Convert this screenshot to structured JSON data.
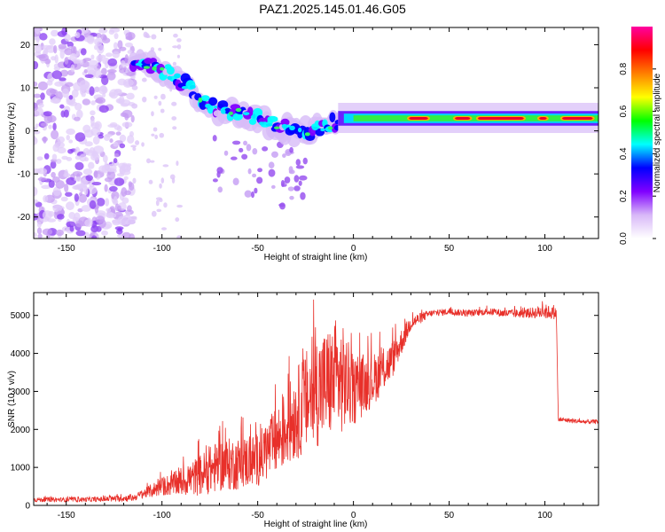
{
  "figure": {
    "title": "PAZ1.2025.145.01.46.G05"
  },
  "chart_data": [
    {
      "type": "heatmap",
      "xlabel": "Height of straight line (km)",
      "ylabel": "Frequency (Hz)",
      "xlim": [
        -167,
        128
      ],
      "ylim": [
        -25,
        24
      ],
      "xticks": [
        -150,
        -100,
        -50,
        0,
        50,
        100
      ],
      "yticks": [
        -20,
        -10,
        0,
        10,
        20
      ],
      "colorbar": {
        "label": "Normalized spectral amplitude",
        "range": [
          0,
          1
        ],
        "ticks": [
          0.0,
          0.2,
          0.4,
          0.6,
          0.8
        ],
        "tick_labels": [
          "0.0",
          "0.2",
          "0.4",
          "0.6",
          "0.8"
        ],
        "colormap": [
          "#ffffff",
          "#d8b8f8",
          "#8000ff",
          "#0000ff",
          "#00ffff",
          "#00ff00",
          "#ffff00",
          "#ff8000",
          "#ff0000",
          "#ff00a0"
        ],
        "position": "right"
      },
      "ridge": [
        {
          "x": -115,
          "y": 16
        },
        {
          "x": -105,
          "y": 15
        },
        {
          "x": -95,
          "y": 13
        },
        {
          "x": -85,
          "y": 10
        },
        {
          "x": -80,
          "y": 7
        },
        {
          "x": -70,
          "y": 5
        },
        {
          "x": -60,
          "y": 4
        },
        {
          "x": -50,
          "y": 3
        },
        {
          "x": -40,
          "y": 1
        },
        {
          "x": -30,
          "y": 0
        },
        {
          "x": -20,
          "y": 0
        },
        {
          "x": -10,
          "y": 2
        },
        {
          "x": 0,
          "y": 3
        },
        {
          "x": 25,
          "y": 2.8
        },
        {
          "x": 50,
          "y": 3
        },
        {
          "x": 75,
          "y": 3
        },
        {
          "x": 100,
          "y": 3
        },
        {
          "x": 128,
          "y": 2.8
        }
      ],
      "noise_region": [
        -167,
        -115
      ]
    },
    {
      "type": "line",
      "xlabel": "Height of straight line (km)",
      "ylabel": "SNR (10 * v/v)",
      "xlim": [
        -167,
        128
      ],
      "ylim": [
        0,
        5600
      ],
      "xticks": [
        -150,
        -100,
        -50,
        0,
        50,
        100
      ],
      "yticks": [
        0,
        1000,
        2000,
        3000,
        4000,
        5000
      ],
      "line_color": "#e8302a",
      "series": [
        {
          "x": [
            -167,
            -150,
            -130,
            -115,
            -110,
            -100,
            -90,
            -80,
            -70,
            -60,
            -50,
            -40,
            -30,
            -20,
            -10,
            -5,
            0,
            10,
            20,
            30,
            40,
            50,
            60,
            70,
            80,
            90,
            100,
            106,
            107,
            110,
            120,
            128
          ],
          "y": [
            150,
            150,
            160,
            200,
            300,
            500,
            600,
            800,
            1050,
            1100,
            1200,
            1700,
            2400,
            3000,
            3300,
            3300,
            3000,
            3300,
            3800,
            4800,
            5050,
            5100,
            5050,
            5100,
            5050,
            5050,
            5100,
            5050,
            2250,
            2250,
            2200,
            2200
          ],
          "spread": [
            60,
            60,
            70,
            90,
            120,
            250,
            350,
            550,
            700,
            700,
            700,
            900,
            1200,
            1500,
            1500,
            1400,
            900,
            700,
            500,
            200,
            90,
            90,
            90,
            90,
            110,
            120,
            200,
            150,
            60,
            60,
            60,
            60
          ]
        }
      ]
    }
  ]
}
